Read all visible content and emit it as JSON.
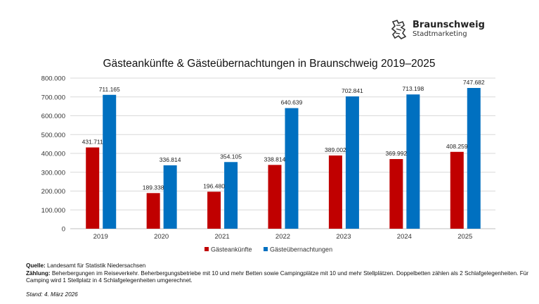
{
  "logo": {
    "name": "Braunschweig",
    "sub": "Stadtmarketing"
  },
  "chart_data": {
    "type": "bar",
    "title": "Gästeankünfte & Gästeübernachtungen in Braunschweig 2019–2025",
    "categories": [
      "2019",
      "2020",
      "2021",
      "2022",
      "2023",
      "2024",
      "2025"
    ],
    "series": [
      {
        "name": "Gästeankünfte",
        "color": "#C00000",
        "values": [
          431711,
          189338,
          196480,
          338814,
          389002,
          369992,
          408259
        ],
        "labels": [
          "431.711",
          "189.338",
          "196.480",
          "338.814",
          "389.002",
          "369.992",
          "408.259"
        ]
      },
      {
        "name": "Gästeübernachtungen",
        "color": "#0070C0",
        "values": [
          711165,
          336814,
          354105,
          640639,
          702841,
          713198,
          747682
        ],
        "labels": [
          "711.165",
          "336.814",
          "354.105",
          "640.639",
          "702.841",
          "713.198",
          "747.682"
        ]
      }
    ],
    "ylim": [
      0,
      800000
    ],
    "yticks": [
      0,
      100000,
      200000,
      300000,
      400000,
      500000,
      600000,
      700000,
      800000
    ],
    "ytick_labels": [
      "0",
      "100.000",
      "200.000",
      "300.000",
      "400.000",
      "500.000",
      "600.000",
      "700.000",
      "800.000"
    ],
    "grid": true,
    "legend": "bottom"
  },
  "notes": {
    "source_label": "Quelle:",
    "source": "Landesamt für Statistik Niedersachsen",
    "count_label": "Zählung:",
    "count": "Beherbergungen im Reiseverkehr. Beherbergungsbetriebe mit 10 und mehr Betten sowie Campingplätze mit 10 und mehr Stellplätzen. Doppelbetten zählen als 2 Schlafgelegenheiten. Für Camping wird 1 Stellplatz in 4 Schlafgelegenheiten umgerechnet.",
    "stand": "Stand: 4. März 2026"
  }
}
